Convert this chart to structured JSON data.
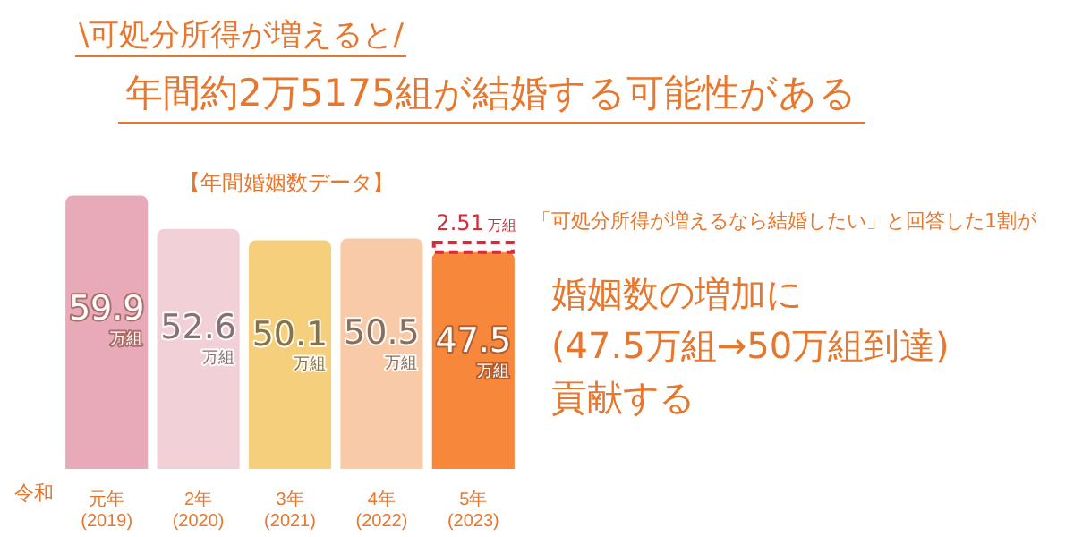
{
  "chart_data": {
    "type": "bar",
    "subtitle": "\\可処分所得が増えると/",
    "title": "年間約2万5175組が結婚する可能性がある",
    "categories": [
      "元年\n(2019)",
      "2年\n(2020)",
      "3年\n(2021)",
      "4年\n(2022)",
      "5年\n(2023)"
    ],
    "stacked": true,
    "data_labels": true,
    "series": [
      {
        "colors": [
          "#e8aab9",
          "#f1d0d7",
          "#f5cf7c",
          "#f8caa8",
          "#f7883b"
        ],
        "values": [
          59.9,
          52.6,
          50.1,
          50.5,
          47.5
        ],
        "value_labels": [
          "59.9 万組",
          "52.6 万組",
          "50.1 万組",
          "50.5 万組",
          "47.5 万組"
        ]
      },
      {
        "color": "#d92a3c",
        "line_style": "dashed",
        "values": [
          null,
          null,
          null,
          null,
          2.51
        ],
        "value_labels": [
          null,
          null,
          null,
          null,
          "2.51 万組"
        ]
      }
    ],
    "annotations": [
      "【年間婚姻数データ】",
      "「可処分所得が増えるなら結婚したい」と回答した1割が",
      "婚姻数の増加に\n(47.5万組→50万組到達)\n貢献する",
      "令和"
    ]
  }
}
